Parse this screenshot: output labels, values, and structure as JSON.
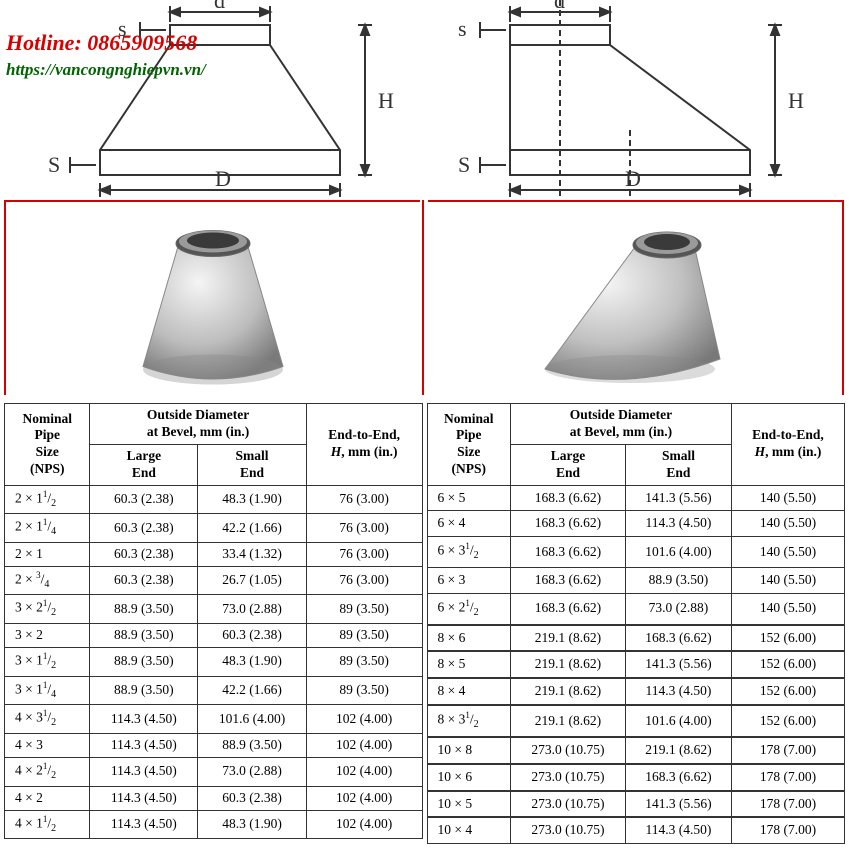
{
  "overlay": {
    "hotline": "Hotline: 0865909568",
    "url": "https://vancongnghiepvn.vn/"
  },
  "diagram_labels": {
    "s": "s",
    "d": "d",
    "H": "H",
    "S_bottom": "S",
    "D": "D"
  },
  "diagram_style": {
    "stroke": "#333333",
    "stroke_width": 2,
    "fill": "#e6e6e6",
    "label_font_size": 22
  },
  "photo_style": {
    "highlight": "#f2f2f2",
    "midtone": "#b4b4b4",
    "shadow": "#7a7a7a"
  },
  "frame_color": "#d60000",
  "table_headers": {
    "nps": "Nominal\nPipe\nSize\n(NPS)",
    "outside": "Outside Diameter\nat Bevel, mm (in.)",
    "large": "Large\nEnd",
    "small": "Small\nEnd",
    "end": "End-to-End,\n H, mm (in.)"
  },
  "table_left": [
    {
      "nps": "2 × 1½",
      "large": "60.3 (2.38)",
      "small": "48.3 (1.90)",
      "end": "76 (3.00)"
    },
    {
      "nps": "2 × 1¼",
      "large": "60.3 (2.38)",
      "small": "42.2 (1.66)",
      "end": "76 (3.00)"
    },
    {
      "nps": "2 × 1",
      "large": "60.3 (2.38)",
      "small": "33.4 (1.32)",
      "end": "76 (3.00)"
    },
    {
      "nps": "2 × ¾",
      "large": "60.3 (2.38)",
      "small": "26.7 (1.05)",
      "end": "76 (3.00)"
    },
    {
      "nps": "3 × 2½",
      "large": "88.9 (3.50)",
      "small": "73.0 (2.88)",
      "end": "89 (3.50)"
    },
    {
      "nps": "3 × 2",
      "large": "88.9 (3.50)",
      "small": "60.3 (2.38)",
      "end": "89 (3.50)"
    },
    {
      "nps": "3 × 1½",
      "large": "88.9 (3.50)",
      "small": "48.3 (1.90)",
      "end": "89 (3.50)"
    },
    {
      "nps": "3 × 1¼",
      "large": "88.9 (3.50)",
      "small": "42.2 (1.66)",
      "end": "89 (3.50)"
    },
    {
      "nps": "4 × 3½",
      "large": "114.3 (4.50)",
      "small": "101.6 (4.00)",
      "end": "102 (4.00)"
    },
    {
      "nps": "4 × 3",
      "large": "114.3 (4.50)",
      "small": "88.9 (3.50)",
      "end": "102 (4.00)"
    },
    {
      "nps": "4 × 2½",
      "large": "114.3 (4.50)",
      "small": "73.0 (2.88)",
      "end": "102 (4.00)"
    },
    {
      "nps": "4 × 2",
      "large": "114.3 (4.50)",
      "small": "60.3 (2.38)",
      "end": "102 (4.00)"
    },
    {
      "nps": "4 × 1½",
      "large": "114.3 (4.50)",
      "small": "48.3 (1.90)",
      "end": "102 (4.00)"
    }
  ],
  "table_right_groups": [
    [
      {
        "nps": "6 × 5",
        "large": "168.3 (6.62)",
        "small": "141.3 (5.56)",
        "end": "140 (5.50)"
      },
      {
        "nps": "6 × 4",
        "large": "168.3 (6.62)",
        "small": "114.3 (4.50)",
        "end": "140 (5.50)"
      },
      {
        "nps": "6 × 3½",
        "large": "168.3 (6.62)",
        "small": "101.6 (4.00)",
        "end": "140 (5.50)"
      },
      {
        "nps": "6 × 3",
        "large": "168.3 (6.62)",
        "small": "88.9 (3.50)",
        "end": "140 (5.50)"
      },
      {
        "nps": "6 × 2½",
        "large": "168.3 (6.62)",
        "small": "73.0 (2.88)",
        "end": "140 (5.50)"
      }
    ],
    [
      {
        "nps": "8 × 6",
        "large": "219.1 (8.62)",
        "small": "168.3 (6.62)",
        "end": "152 (6.00)"
      },
      {
        "nps": "8 × 5",
        "large": "219.1 (8.62)",
        "small": "141.3 (5.56)",
        "end": "152 (6.00)"
      },
      {
        "nps": "8 × 4",
        "large": "219.1 (8.62)",
        "small": "114.3 (4.50)",
        "end": "152 (6.00)"
      },
      {
        "nps": "8 × 3½",
        "large": "219.1 (8.62)",
        "small": "101.6 (4.00)",
        "end": "152 (6.00)"
      }
    ],
    [
      {
        "nps": "10 × 8",
        "large": "273.0 (10.75)",
        "small": "219.1 (8.62)",
        "end": "178 (7.00)"
      },
      {
        "nps": "10 × 6",
        "large": "273.0 (10.75)",
        "small": "168.3 (6.62)",
        "end": "178 (7.00)"
      },
      {
        "nps": "10 × 5",
        "large": "273.0 (10.75)",
        "small": "141.3 (5.56)",
        "end": "178 (7.00)"
      },
      {
        "nps": "10 × 4",
        "large": "273.0 (10.75)",
        "small": "114.3 (4.50)",
        "end": "178 (7.00)"
      }
    ]
  ],
  "table_style": {
    "font_size": 13.5,
    "border_color": "#333333",
    "text_color": "#000000"
  }
}
